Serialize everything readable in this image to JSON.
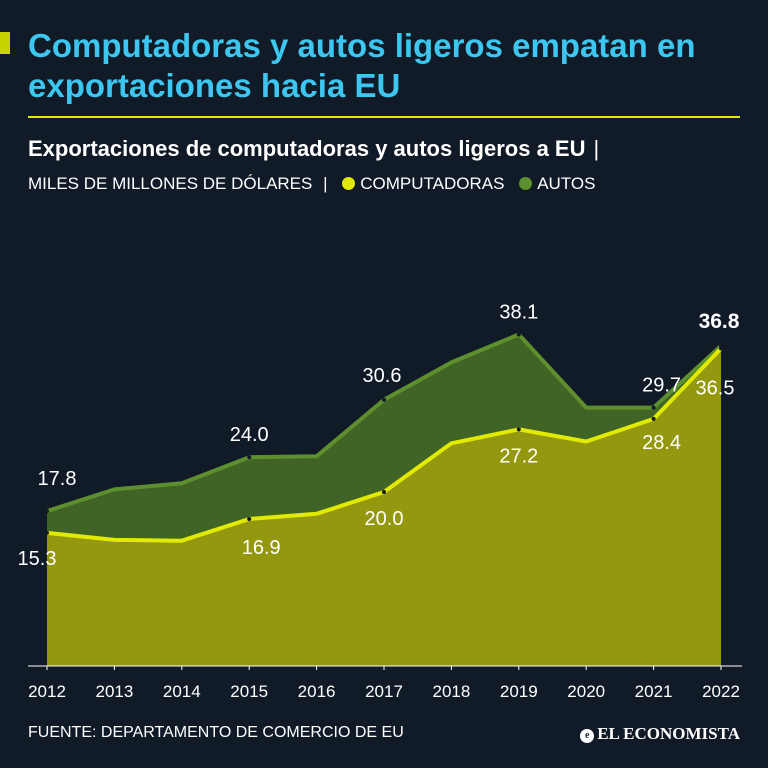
{
  "header": {
    "title": "Computadoras y autos ligeros empatan en exportaciones hacia EU",
    "subtitle": "Exportaciones de computadoras y autos ligeros a EU",
    "separator": "|",
    "units": "MILES DE MILLONES DE DÓLARES",
    "units_separator": "|"
  },
  "legend": [
    {
      "label": "COMPUTADORAS",
      "color": "#e2ea00"
    },
    {
      "label": "AUTOS",
      "color": "#5e8f2e"
    }
  ],
  "chart_data": {
    "type": "area",
    "title": "Exportaciones de computadoras y autos ligeros a EU",
    "ylabel": "Miles de millones de dólares",
    "ylim": [
      0,
      40
    ],
    "categories": [
      "2012",
      "2013",
      "2014",
      "2015",
      "2016",
      "2017",
      "2018",
      "2019",
      "2020",
      "2021",
      "2022"
    ],
    "series": [
      {
        "name": "COMPUTADORAS",
        "color": "#e2ea00",
        "fill": "#94980e",
        "values": [
          15.3,
          14.5,
          14.4,
          16.9,
          17.5,
          20.0,
          25.6,
          27.2,
          25.8,
          28.4,
          36.5
        ],
        "labels": {
          "0": "15.3",
          "3": "16.9",
          "5": "20.0",
          "7": "27.2",
          "9": "28.4",
          "10": "36.5"
        }
      },
      {
        "name": "AUTOS",
        "color": "#5e8f2e",
        "fill": "#3f6426",
        "values": [
          17.8,
          20.3,
          21.0,
          24.0,
          24.1,
          30.6,
          34.9,
          38.1,
          29.7,
          29.7,
          36.8
        ],
        "labels": {
          "0": "17.8",
          "3": "24.0",
          "5": "30.6",
          "7": "38.1",
          "9": "29.7",
          "10": "36.8"
        }
      }
    ]
  },
  "footer": {
    "source": "FUENTE: DEPARTAMENTO DE COMERCIO DE EU",
    "logo": "EL ECONOMISTA"
  }
}
